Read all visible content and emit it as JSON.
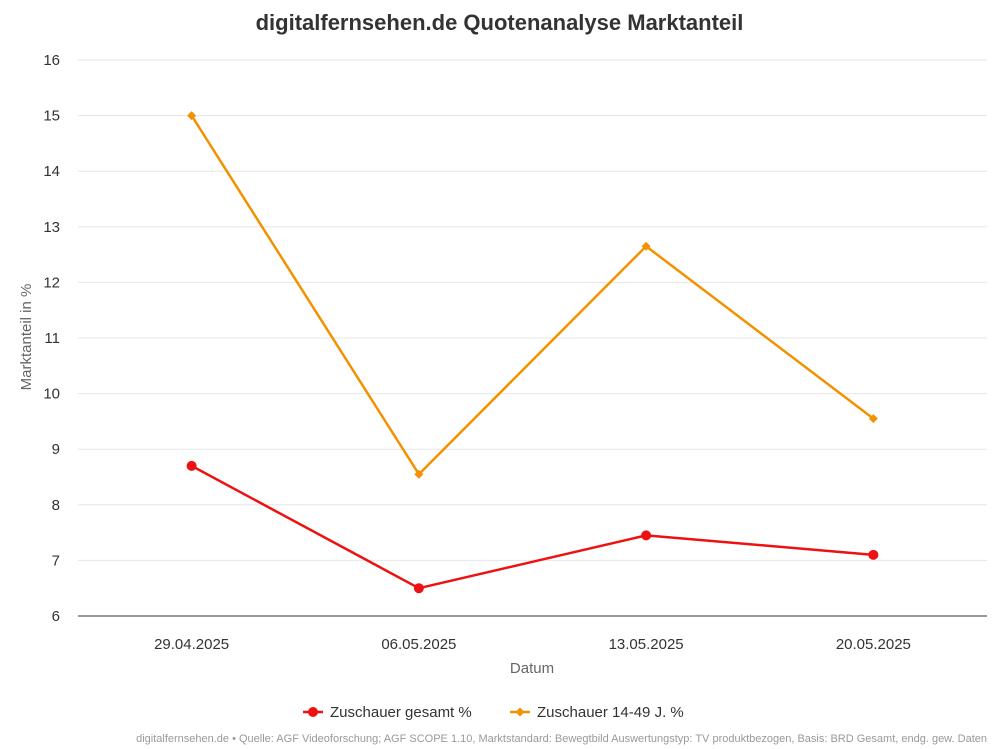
{
  "chart_data": {
    "type": "line",
    "title": "digitalfernsehen.de Quotenanalyse Marktanteil",
    "xlabel": "Datum",
    "ylabel": "Marktanteil in %",
    "categories": [
      "29.04.2025",
      "06.05.2025",
      "13.05.2025",
      "20.05.2025"
    ],
    "ylim": [
      6,
      16
    ],
    "yticks": [
      6,
      7,
      8,
      9,
      10,
      11,
      12,
      13,
      14,
      15,
      16
    ],
    "grid": true,
    "legend_position": "bottom-center",
    "series": [
      {
        "name": "Zuschauer gesamt %",
        "values": [
          8.7,
          6.5,
          7.45,
          7.1
        ],
        "color": "#ee1111",
        "marker": "circle"
      },
      {
        "name": "Zuschauer 14-49 J. %",
        "values": [
          15.0,
          8.55,
          12.65,
          9.55
        ],
        "color": "#f39200",
        "marker": "diamond"
      }
    ],
    "source": "digitalfernsehen.de • Quelle: AGF Videoforschung; AGF SCOPE 1.10, Marktstandard: Bewegtbild Auswertungstyp: TV produktbezogen, Basis: BRD Gesamt, endg. gew. Daten"
  }
}
